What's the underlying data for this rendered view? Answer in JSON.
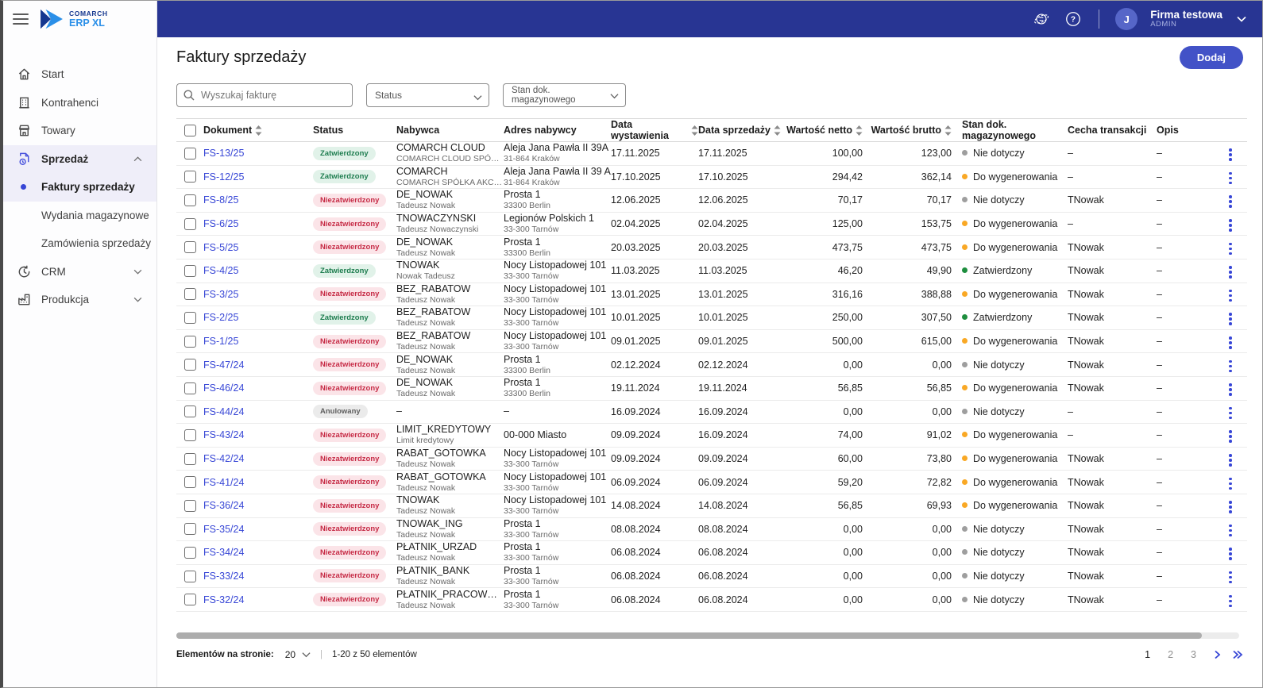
{
  "brand": {
    "name_top": "COMARCH",
    "name_bottom": "ERP XL"
  },
  "topbar": {
    "company": "Firma testowa",
    "role": "ADMIN",
    "avatar_initial": "J"
  },
  "sidebar": {
    "items": [
      {
        "label": "Start",
        "icon": "home"
      },
      {
        "label": "Kontrahenci",
        "icon": "building"
      },
      {
        "label": "Towary",
        "icon": "store"
      },
      {
        "label": "Sprzedaż",
        "icon": "sales-document",
        "expanded": true
      },
      {
        "label": "Faktury sprzedaży",
        "sub": true,
        "active": true
      },
      {
        "label": "Wydania magazynowe",
        "sub": true
      },
      {
        "label": "Zamówienia sprzedaży",
        "sub": true
      },
      {
        "label": "CRM",
        "icon": "crm",
        "expanded": false
      },
      {
        "label": "Produkcja",
        "icon": "production",
        "expanded": false
      }
    ]
  },
  "page": {
    "title": "Faktury sprzedaży",
    "add_button": "Dodaj"
  },
  "filters": {
    "search_placeholder": "Wyszukaj fakturę",
    "status_label": "Status",
    "stock_state_label": "Stan dok. magazynowego"
  },
  "table": {
    "columns": [
      {
        "label": "Dokument",
        "sortable": true
      },
      {
        "label": "Status",
        "sortable": false
      },
      {
        "label": "Nabywca",
        "sortable": false
      },
      {
        "label": "Adres nabywcy",
        "sortable": false
      },
      {
        "label": "Data wystawienia",
        "sortable": true
      },
      {
        "label": "Data sprzedaży",
        "sortable": true
      },
      {
        "label": "Wartość netto",
        "sortable": true,
        "align": "right"
      },
      {
        "label": "Wartość brutto",
        "sortable": true,
        "align": "right"
      },
      {
        "label": "Stan dok. magazynowego",
        "sortable": false
      },
      {
        "label": "Cecha transakcji",
        "sortable": false
      },
      {
        "label": "Opis",
        "sortable": false
      }
    ]
  },
  "rows": [
    {
      "doc": "FS-13/25",
      "status": "Zatwierdzony",
      "status_kind": "approved",
      "buyer": "COMARCH CLOUD",
      "buyer_sub": "COMARCH CLOUD SPÓŁKA ...",
      "addr1": "Aleja Jana Pawła II 39A",
      "addr2": "31-864 Kraków",
      "issue_date": "17.11.2025",
      "sale_date": "17.11.2025",
      "net": "100,00",
      "gross": "123,00",
      "stock_state": "Nie dotyczy",
      "stock_kind": "gray",
      "feature": "–",
      "desc": "–"
    },
    {
      "doc": "FS-12/25",
      "status": "Zatwierdzony",
      "status_kind": "approved",
      "buyer": "COMARCH",
      "buyer_sub": "COMARCH SPÓŁKA AKCYJNA",
      "addr1": "Aleja Jana Pawła II 39 A",
      "addr2": "31-864 Kraków",
      "issue_date": "17.10.2025",
      "sale_date": "17.10.2025",
      "net": "294,42",
      "gross": "362,14",
      "stock_state": "Do wygenerowania",
      "stock_kind": "orange",
      "feature": "–",
      "desc": "–"
    },
    {
      "doc": "FS-8/25",
      "status": "Niezatwierdzony",
      "status_kind": "unapproved",
      "buyer": "DE_NOWAK",
      "buyer_sub": "Tadeusz Nowak",
      "addr1": "Prosta 1",
      "addr2": "33300 Berlin",
      "issue_date": "12.06.2025",
      "sale_date": "12.06.2025",
      "net": "70,17",
      "gross": "70,17",
      "stock_state": "Nie dotyczy",
      "stock_kind": "gray",
      "feature": "TNowak",
      "desc": "–"
    },
    {
      "doc": "FS-6/25",
      "status": "Niezatwierdzony",
      "status_kind": "unapproved",
      "buyer": "TNOWACZYNSKI",
      "buyer_sub": "Tadeusz Nowaczynski",
      "addr1": "Legionów Polskich 1",
      "addr2": "33-300 Tarnów",
      "issue_date": "02.04.2025",
      "sale_date": "02.04.2025",
      "net": "125,00",
      "gross": "153,75",
      "stock_state": "Do wygenerowania",
      "stock_kind": "orange",
      "feature": "–",
      "desc": "–"
    },
    {
      "doc": "FS-5/25",
      "status": "Niezatwierdzony",
      "status_kind": "unapproved",
      "buyer": "DE_NOWAK",
      "buyer_sub": "Tadeusz Nowak",
      "addr1": "Prosta 1",
      "addr2": "33300 Berlin",
      "issue_date": "20.03.2025",
      "sale_date": "20.03.2025",
      "net": "473,75",
      "gross": "473,75",
      "stock_state": "Do wygenerowania",
      "stock_kind": "orange",
      "feature": "TNowak",
      "desc": "–"
    },
    {
      "doc": "FS-4/25",
      "status": "Zatwierdzony",
      "status_kind": "approved",
      "buyer": "TNOWAK",
      "buyer_sub": "Nowak Tadeusz",
      "addr1": "Nocy Listopadowej 101",
      "addr2": "33-300 Tarnów",
      "issue_date": "11.03.2025",
      "sale_date": "11.03.2025",
      "net": "46,20",
      "gross": "49,90",
      "stock_state": "Zatwierdzony",
      "stock_kind": "green",
      "feature": "TNowak",
      "desc": "–"
    },
    {
      "doc": "FS-3/25",
      "status": "Niezatwierdzony",
      "status_kind": "unapproved",
      "buyer": "BEZ_RABATOW",
      "buyer_sub": "Tadeusz Nowak",
      "addr1": "Nocy Listopadowej 101",
      "addr2": "33-300 Tarnów",
      "issue_date": "13.01.2025",
      "sale_date": "13.01.2025",
      "net": "316,16",
      "gross": "388,88",
      "stock_state": "Do wygenerowania",
      "stock_kind": "orange",
      "feature": "TNowak",
      "desc": "–"
    },
    {
      "doc": "FS-2/25",
      "status": "Zatwierdzony",
      "status_kind": "approved",
      "buyer": "BEZ_RABATOW",
      "buyer_sub": "Tadeusz Nowak",
      "addr1": "Nocy Listopadowej 101",
      "addr2": "33-300 Tarnów",
      "issue_date": "10.01.2025",
      "sale_date": "10.01.2025",
      "net": "250,00",
      "gross": "307,50",
      "stock_state": "Zatwierdzony",
      "stock_kind": "green",
      "feature": "TNowak",
      "desc": "–"
    },
    {
      "doc": "FS-1/25",
      "status": "Niezatwierdzony",
      "status_kind": "unapproved",
      "buyer": "BEZ_RABATOW",
      "buyer_sub": "Tadeusz Nowak",
      "addr1": "Nocy Listopadowej 101",
      "addr2": "33-300 Tarnów",
      "issue_date": "09.01.2025",
      "sale_date": "09.01.2025",
      "net": "500,00",
      "gross": "615,00",
      "stock_state": "Do wygenerowania",
      "stock_kind": "orange",
      "feature": "TNowak",
      "desc": "–"
    },
    {
      "doc": "FS-47/24",
      "status": "Niezatwierdzony",
      "status_kind": "unapproved",
      "buyer": "DE_NOWAK",
      "buyer_sub": "Tadeusz Nowak",
      "addr1": "Prosta 1",
      "addr2": "33300 Berlin",
      "issue_date": "02.12.2024",
      "sale_date": "02.12.2024",
      "net": "0,00",
      "gross": "0,00",
      "stock_state": "Nie dotyczy",
      "stock_kind": "gray",
      "feature": "TNowak",
      "desc": "–"
    },
    {
      "doc": "FS-46/24",
      "status": "Niezatwierdzony",
      "status_kind": "unapproved",
      "buyer": "DE_NOWAK",
      "buyer_sub": "Tadeusz Nowak",
      "addr1": "Prosta 1",
      "addr2": "33300 Berlin",
      "issue_date": "19.11.2024",
      "sale_date": "19.11.2024",
      "net": "56,85",
      "gross": "56,85",
      "stock_state": "Do wygenerowania",
      "stock_kind": "orange",
      "feature": "TNowak",
      "desc": "–"
    },
    {
      "doc": "FS-44/24",
      "status": "Anulowany",
      "status_kind": "cancelled",
      "buyer": "–",
      "buyer_sub": "",
      "addr1": "–",
      "addr2": "",
      "issue_date": "16.09.2024",
      "sale_date": "16.09.2024",
      "net": "0,00",
      "gross": "0,00",
      "stock_state": "Nie dotyczy",
      "stock_kind": "gray",
      "feature": "–",
      "desc": "–"
    },
    {
      "doc": "FS-43/24",
      "status": "Niezatwierdzony",
      "status_kind": "unapproved",
      "buyer": "LIMIT_KREDYTOWY",
      "buyer_sub": "Limit kredytowy",
      "addr1": "00-000 Miasto",
      "addr2": "",
      "issue_date": "09.09.2024",
      "sale_date": "16.09.2024",
      "net": "74,00",
      "gross": "91,02",
      "stock_state": "Do wygenerowania",
      "stock_kind": "orange",
      "feature": "–",
      "desc": "–"
    },
    {
      "doc": "FS-42/24",
      "status": "Niezatwierdzony",
      "status_kind": "unapproved",
      "buyer": "RABAT_GOTOWKA",
      "buyer_sub": "Tadeusz Nowak",
      "addr1": "Nocy Listopadowej 101",
      "addr2": "33-300 Tarnów",
      "issue_date": "09.09.2024",
      "sale_date": "09.09.2024",
      "net": "60,00",
      "gross": "73,80",
      "stock_state": "Do wygenerowania",
      "stock_kind": "orange",
      "feature": "TNowak",
      "desc": "–"
    },
    {
      "doc": "FS-41/24",
      "status": "Niezatwierdzony",
      "status_kind": "unapproved",
      "buyer": "RABAT_GOTOWKA",
      "buyer_sub": "Tadeusz Nowak",
      "addr1": "Nocy Listopadowej 101",
      "addr2": "33-300 Tarnów",
      "issue_date": "06.09.2024",
      "sale_date": "06.09.2024",
      "net": "59,20",
      "gross": "72,82",
      "stock_state": "Do wygenerowania",
      "stock_kind": "orange",
      "feature": "TNowak",
      "desc": "–"
    },
    {
      "doc": "FS-36/24",
      "status": "Niezatwierdzony",
      "status_kind": "unapproved",
      "buyer": "TNOWAK",
      "buyer_sub": "Tadeusz Nowak",
      "addr1": "Nocy Listopadowej 101",
      "addr2": "33-300 Tarnów",
      "issue_date": "14.08.2024",
      "sale_date": "14.08.2024",
      "net": "56,85",
      "gross": "69,93",
      "stock_state": "Do wygenerowania",
      "stock_kind": "orange",
      "feature": "TNowak",
      "desc": "–"
    },
    {
      "doc": "FS-35/24",
      "status": "Niezatwierdzony",
      "status_kind": "unapproved",
      "buyer": "TNOWAK_ING",
      "buyer_sub": "Tadeusz Nowak",
      "addr1": "Prosta 1",
      "addr2": "33-300 Tarnów",
      "issue_date": "08.08.2024",
      "sale_date": "08.08.2024",
      "net": "0,00",
      "gross": "0,00",
      "stock_state": "Nie dotyczy",
      "stock_kind": "gray",
      "feature": "TNowak",
      "desc": "–"
    },
    {
      "doc": "FS-34/24",
      "status": "Niezatwierdzony",
      "status_kind": "unapproved",
      "buyer": "PŁATNIK_URZAD",
      "buyer_sub": "Tadeusz Nowak",
      "addr1": "Prosta 1",
      "addr2": "33-300 Tarnów",
      "issue_date": "06.08.2024",
      "sale_date": "06.08.2024",
      "net": "0,00",
      "gross": "0,00",
      "stock_state": "Nie dotyczy",
      "stock_kind": "gray",
      "feature": "TNowak",
      "desc": "–"
    },
    {
      "doc": "FS-33/24",
      "status": "Niezatwierdzony",
      "status_kind": "unapproved",
      "buyer": "PŁATNIK_BANK",
      "buyer_sub": "Tadeusz Nowak",
      "addr1": "Prosta 1",
      "addr2": "33-300 Tarnów",
      "issue_date": "06.08.2024",
      "sale_date": "06.08.2024",
      "net": "0,00",
      "gross": "0,00",
      "stock_state": "Nie dotyczy",
      "stock_kind": "gray",
      "feature": "TNowak",
      "desc": "–"
    },
    {
      "doc": "FS-32/24",
      "status": "Niezatwierdzony",
      "status_kind": "unapproved",
      "buyer": "PŁATNIK_PRACOWNIK",
      "buyer_sub": "Tadeusz Nowak",
      "addr1": "Prosta 1",
      "addr2": "33-300 Tarnów",
      "issue_date": "06.08.2024",
      "sale_date": "06.08.2024",
      "net": "0,00",
      "gross": "0,00",
      "stock_state": "Nie dotyczy",
      "stock_kind": "gray",
      "feature": "TNowak",
      "desc": "–"
    }
  ],
  "footer": {
    "page_size_label": "Elementów na stronie:",
    "page_size": "20",
    "range_text": "1-20 z 50 elementów",
    "pages": [
      "1",
      "2",
      "3"
    ],
    "current_page": "1"
  },
  "colors": {
    "topbar": "#283593",
    "accent": "#3746d6",
    "button": "#4252c7",
    "pill_approved_bg": "#e1f2e9",
    "pill_approved_text": "#1e7d4f",
    "pill_unapproved_bg": "#fbe4e8",
    "pill_unapproved_text": "#c62a45",
    "pill_cancelled_bg": "#ebebeb",
    "pill_cancelled_text": "#5f5f5f",
    "dot_gray": "#9e9e9e",
    "dot_orange": "#f9a825",
    "dot_green": "#1e8e3e"
  }
}
